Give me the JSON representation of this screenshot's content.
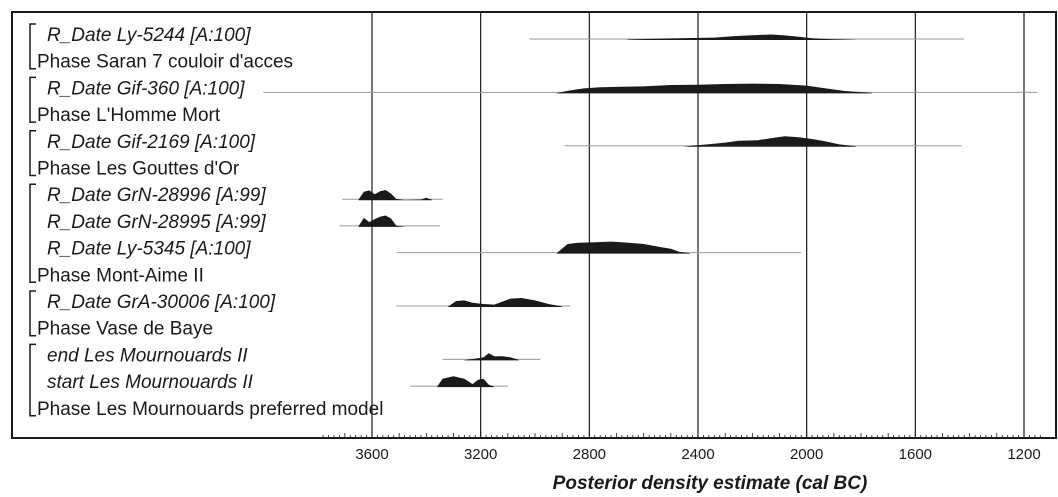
{
  "chart_data": {
    "type": "oxcal-multiplot",
    "xlabel": "Posterior density estimate (cal BC)",
    "x_direction": "reversed",
    "xlim": [
      3780,
      1140
    ],
    "ticks": [
      3600,
      3200,
      2800,
      2400,
      2000,
      1600,
      1200
    ],
    "tick_labels": [
      "3600",
      "3200",
      "2800",
      "2400",
      "2000",
      "1600",
      "1200"
    ],
    "grid": true,
    "rows": [
      {
        "label": "R_Date Ly-5244 [A:100]",
        "kind": "date",
        "range": [
          3020,
          1420
        ],
        "density": [
          [
            2660,
            0.03
          ],
          [
            2560,
            0.1
          ],
          [
            2450,
            0.16
          ],
          [
            2340,
            0.2
          ],
          [
            2280,
            0.3
          ],
          [
            2240,
            0.35
          ],
          [
            2180,
            0.42
          ],
          [
            2130,
            0.46
          ],
          [
            2080,
            0.38
          ],
          [
            2030,
            0.27
          ],
          [
            1980,
            0.14
          ],
          [
            1900,
            0.05
          ],
          [
            1820,
            0.01
          ]
        ]
      },
      {
        "label": "Phase Saran 7 couloir d'acces",
        "kind": "phase"
      },
      {
        "label": "R_Date Gif-360 [A:100]",
        "kind": "date",
        "range": [
          4000,
          1150
        ],
        "density": [
          [
            2920,
            0.03
          ],
          [
            2870,
            0.25
          ],
          [
            2820,
            0.42
          ],
          [
            2760,
            0.52
          ],
          [
            2680,
            0.55
          ],
          [
            2600,
            0.58
          ],
          [
            2500,
            0.7
          ],
          [
            2400,
            0.72
          ],
          [
            2300,
            0.78
          ],
          [
            2200,
            0.82
          ],
          [
            2100,
            0.78
          ],
          [
            2000,
            0.65
          ],
          [
            1940,
            0.45
          ],
          [
            1860,
            0.2
          ],
          [
            1760,
            0.04
          ]
        ]
      },
      {
        "label": "Phase L'Homme Mort",
        "kind": "phase"
      },
      {
        "label": "R_Date Gif-2169 [A:100]",
        "kind": "date",
        "range": [
          2890,
          1430
        ],
        "density": [
          [
            2450,
            0.02
          ],
          [
            2420,
            0.1
          ],
          [
            2360,
            0.22
          ],
          [
            2300,
            0.35
          ],
          [
            2250,
            0.5
          ],
          [
            2180,
            0.55
          ],
          [
            2120,
            0.75
          ],
          [
            2080,
            0.88
          ],
          [
            2030,
            0.8
          ],
          [
            1980,
            0.65
          ],
          [
            1930,
            0.45
          ],
          [
            1880,
            0.2
          ],
          [
            1820,
            0.04
          ]
        ]
      },
      {
        "label": "Phase Les Gouttes d'Or",
        "kind": "phase"
      },
      {
        "label": "R_Date GrN-28996 [A:99]",
        "kind": "date",
        "range": [
          3710,
          3340
        ],
        "density": [
          [
            3650,
            0.03
          ],
          [
            3630,
            0.7
          ],
          [
            3610,
            0.82
          ],
          [
            3590,
            0.5
          ],
          [
            3570,
            0.75
          ],
          [
            3550,
            0.85
          ],
          [
            3530,
            0.55
          ],
          [
            3510,
            0.1
          ],
          [
            3480,
            0.02
          ],
          [
            3420,
            0.05
          ],
          [
            3400,
            0.2
          ],
          [
            3380,
            0.05
          ]
        ]
      },
      {
        "label": "R_Date GrN-28995 [A:99]",
        "kind": "date",
        "range": [
          3720,
          3350
        ],
        "density": [
          [
            3650,
            0.04
          ],
          [
            3630,
            0.75
          ],
          [
            3610,
            0.4
          ],
          [
            3590,
            0.65
          ],
          [
            3570,
            0.85
          ],
          [
            3550,
            0.95
          ],
          [
            3530,
            0.7
          ],
          [
            3510,
            0.1
          ],
          [
            3480,
            0.02
          ]
        ]
      },
      {
        "label": "R_Date Ly-5345 [A:100]",
        "kind": "date",
        "range": [
          3510,
          2020
        ],
        "density": [
          [
            2920,
            0.04
          ],
          [
            2880,
            0.8
          ],
          [
            2840,
            0.9
          ],
          [
            2780,
            0.95
          ],
          [
            2720,
            1.0
          ],
          [
            2660,
            0.92
          ],
          [
            2600,
            0.8
          ],
          [
            2540,
            0.55
          ],
          [
            2500,
            0.4
          ],
          [
            2470,
            0.15
          ],
          [
            2430,
            0.03
          ]
        ]
      },
      {
        "label": "Phase Mont-Aime II",
        "kind": "phase"
      },
      {
        "label": "R_Date GrA-30006 [A:100]",
        "kind": "date",
        "range": [
          3510,
          2870
        ],
        "density": [
          [
            3320,
            0.03
          ],
          [
            3290,
            0.5
          ],
          [
            3260,
            0.55
          ],
          [
            3230,
            0.35
          ],
          [
            3190,
            0.25
          ],
          [
            3150,
            0.2
          ],
          [
            3120,
            0.45
          ],
          [
            3090,
            0.7
          ],
          [
            3050,
            0.75
          ],
          [
            3000,
            0.55
          ],
          [
            2950,
            0.25
          ],
          [
            2900,
            0.04
          ]
        ]
      },
      {
        "label": "Phase Vase de Baye",
        "kind": "phase"
      },
      {
        "label": "end Les Mournouards II",
        "kind": "date",
        "range": [
          3340,
          2980
        ],
        "density": [
          [
            3260,
            0.03
          ],
          [
            3220,
            0.15
          ],
          [
            3190,
            0.25
          ],
          [
            3170,
            0.6
          ],
          [
            3150,
            0.35
          ],
          [
            3120,
            0.35
          ],
          [
            3090,
            0.25
          ],
          [
            3060,
            0.05
          ]
        ]
      },
      {
        "label": "start Les Mournouards II",
        "kind": "date",
        "range": [
          3460,
          3100
        ],
        "density": [
          [
            3360,
            0.05
          ],
          [
            3340,
            0.7
          ],
          [
            3300,
            0.9
          ],
          [
            3260,
            0.7
          ],
          [
            3230,
            0.25
          ],
          [
            3210,
            0.6
          ],
          [
            3190,
            0.7
          ],
          [
            3170,
            0.2
          ],
          [
            3150,
            0.03
          ]
        ]
      },
      {
        "label": "Phase Les Mournouards preferred model",
        "kind": "phase"
      }
    ]
  }
}
